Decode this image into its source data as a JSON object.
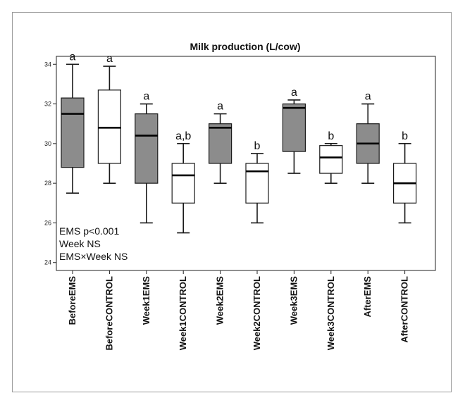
{
  "chart_data": {
    "type": "box",
    "title": "Milk production (L/cow)",
    "xlabel": "",
    "ylabel": "",
    "ylim": [
      23.6,
      34.4
    ],
    "yticks": [
      24,
      26,
      28,
      30,
      32,
      34
    ],
    "categories": [
      "BeforeEMS",
      "BeforeCONTROL",
      "Week1EMS",
      "Week1CONTROL",
      "Week2EMS",
      "Week2CONTROL",
      "Week3EMS",
      "Week3CONTROL",
      "AfterEMS",
      "AfterCONTROL"
    ],
    "groups": [
      "EMS",
      "CONTROL",
      "EMS",
      "CONTROL",
      "EMS",
      "CONTROL",
      "EMS",
      "CONTROL",
      "EMS",
      "CONTROL"
    ],
    "boxes": [
      {
        "min": 27.5,
        "q1": 28.8,
        "median": 31.5,
        "q3": 32.3,
        "max": 34.0
      },
      {
        "min": 28.0,
        "q1": 29.0,
        "median": 30.8,
        "q3": 32.7,
        "max": 33.9
      },
      {
        "min": 26.0,
        "q1": 28.0,
        "median": 30.4,
        "q3": 31.5,
        "max": 32.0
      },
      {
        "min": 25.5,
        "q1": 27.0,
        "median": 28.4,
        "q3": 29.0,
        "max": 30.0
      },
      {
        "min": 28.0,
        "q1": 29.0,
        "median": 30.8,
        "q3": 31.0,
        "max": 31.5
      },
      {
        "min": 26.0,
        "q1": 27.0,
        "median": 28.6,
        "q3": 29.0,
        "max": 29.5
      },
      {
        "min": 28.5,
        "q1": 29.6,
        "median": 31.8,
        "q3": 32.0,
        "max": 32.2
      },
      {
        "min": 28.0,
        "q1": 28.5,
        "median": 29.3,
        "q3": 29.9,
        "max": 30.0
      },
      {
        "min": 28.0,
        "q1": 29.0,
        "median": 30.0,
        "q3": 31.0,
        "max": 32.0
      },
      {
        "min": 26.0,
        "q1": 27.0,
        "median": 28.0,
        "q3": 29.0,
        "max": 30.0
      }
    ],
    "significance_labels": [
      "a",
      "a",
      "a",
      "a,b",
      "a",
      "b",
      "a",
      "b",
      "a",
      "b"
    ],
    "annotation_lines": [
      "EMS p<0.001",
      "Week NS",
      "EMS×Week NS"
    ],
    "colors": {
      "EMS": "#8c8c8c",
      "CONTROL": "#ffffff",
      "stroke": "#1a1a1a"
    },
    "grid": false
  }
}
